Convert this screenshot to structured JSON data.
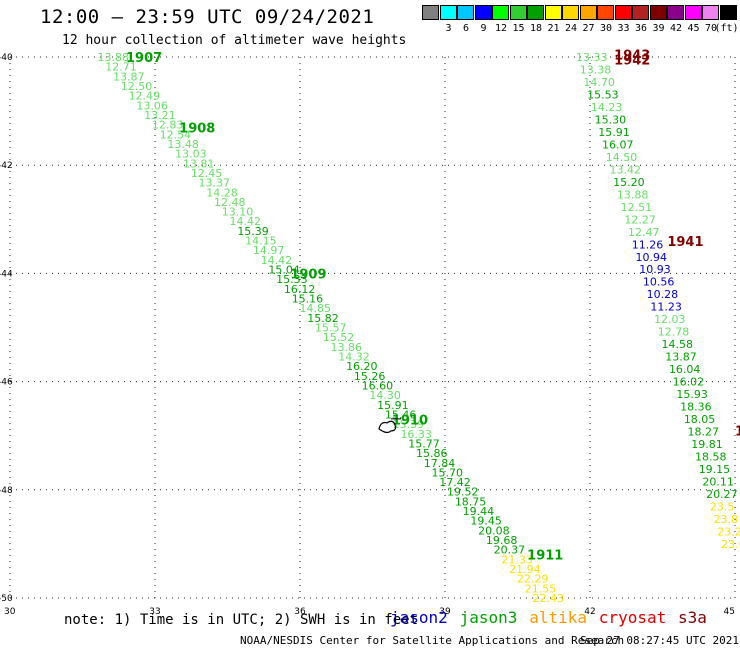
{
  "header": {
    "title": "12:00 – 23:59 UTC 09/24/2021",
    "subtitle": "12 hour collection of altimeter wave heights"
  },
  "legend": {
    "unit": "(ft)",
    "scale": [
      {
        "label": "",
        "color": "#808080"
      },
      {
        "label": "3",
        "color": "#00ffff"
      },
      {
        "label": "6",
        "color": "#00c8ff"
      },
      {
        "label": "9",
        "color": "#0000ff"
      },
      {
        "label": "12",
        "color": "#00ff00"
      },
      {
        "label": "15",
        "color": "#32cd32"
      },
      {
        "label": "18",
        "color": "#00a000"
      },
      {
        "label": "21",
        "color": "#ffff00"
      },
      {
        "label": "24",
        "color": "#ffd700"
      },
      {
        "label": "27",
        "color": "#ffa500"
      },
      {
        "label": "30",
        "color": "#ff4500"
      },
      {
        "label": "33",
        "color": "#ff0000"
      },
      {
        "label": "36",
        "color": "#b22222"
      },
      {
        "label": "39",
        "color": "#800000"
      },
      {
        "label": "42",
        "color": "#8b008b"
      },
      {
        "label": "45",
        "color": "#ff00ff"
      },
      {
        "label": "70",
        "color": "#ee82ee"
      },
      {
        "label": "",
        "color": "#000000"
      }
    ]
  },
  "footer": {
    "note": "note: 1) Time is in UTC; 2) SWH is in feet",
    "satellites": [
      {
        "name": "jason2",
        "color": "#0000cc"
      },
      {
        "name": "jason3",
        "color": "#00a000"
      },
      {
        "name": "altika",
        "color": "#ff9900"
      },
      {
        "name": "cryosat",
        "color": "#dd0000"
      },
      {
        "name": "s3a",
        "color": "#800000"
      }
    ],
    "credit": "NOAA/NESDIS Center for Satellite Applications and Research",
    "timestamp": "Sep 27 08:27:45 UTC 2021"
  },
  "chart_data": {
    "type": "scatter",
    "xlim": [
      30,
      45
    ],
    "ylim": [
      -50,
      -40
    ],
    "x_ticks": [
      "30",
      "33",
      "36",
      "39",
      "42",
      "45"
    ],
    "y_ticks": [
      "-40",
      "-42",
      "-44",
      "-46",
      "-48",
      "-50"
    ],
    "grid": true,
    "colors": {
      "pale_green": "#66dd66",
      "green": "#00a000",
      "blue": "#0000cc",
      "yellow": "#ffdd00",
      "dark_red": "#800000",
      "black": "#000000"
    },
    "tracks": [
      {
        "id": "track-west",
        "start": [
          32.1,
          -40.0
        ],
        "end": [
          41.1,
          -50.0
        ],
        "values": [
          "13.88",
          "12.71",
          "13.87",
          "12.50",
          "12.49",
          "13.06",
          "13.21",
          "12.83",
          "12.54",
          "13.48",
          "13.03",
          "13.81",
          "12.45",
          "13.37",
          "14.28",
          "12.48",
          "13.10",
          "14.42",
          "15.39",
          "14.15",
          "14.97",
          "14.42",
          "15.04",
          "15.33",
          "16.12",
          "15.16",
          "14.85",
          "15.82",
          "15.57",
          "15.52",
          "13.86",
          "14.32",
          "16.20",
          "15.26",
          "16.60",
          "14.30",
          "15.91",
          "15.46",
          "15.39",
          "16.33",
          "15.77",
          "15.86",
          "17.84",
          "15.70",
          "17.42",
          "19.52",
          "18.75",
          "19.44",
          "19.45",
          "20.08",
          "19.68",
          "20.37",
          "21.33",
          "21.94",
          "22.29",
          "21.55",
          "22.43"
        ],
        "colors": [
          "pale_green",
          "pale_green",
          "pale_green",
          "pale_green",
          "pale_green",
          "pale_green",
          "pale_green",
          "pale_green",
          "pale_green",
          "pale_green",
          "pale_green",
          "pale_green",
          "pale_green",
          "pale_green",
          "pale_green",
          "pale_green",
          "pale_green",
          "pale_green",
          "green",
          "pale_green",
          "pale_green",
          "pale_green",
          "green",
          "green",
          "green",
          "green",
          "pale_green",
          "green",
          "pale_green",
          "pale_green",
          "pale_green",
          "pale_green",
          "green",
          "green",
          "green",
          "pale_green",
          "green",
          "green",
          "pale_green",
          "pale_green",
          "green",
          "green",
          "green",
          "green",
          "green",
          "green",
          "green",
          "green",
          "green",
          "green",
          "green",
          "green",
          "yellow",
          "yellow",
          "yellow",
          "yellow",
          "yellow"
        ]
      },
      {
        "id": "track-east",
        "start": [
          42.0,
          -40.0
        ],
        "end": [
          45.0,
          -49.0
        ],
        "values": [
          "13.33",
          "13.38",
          "14.70",
          "15.53",
          "14.23",
          "15.30",
          "15.91",
          "16.07",
          "14.50",
          "13.42",
          "15.20",
          "13.88",
          "12.51",
          "12.27",
          "12.47",
          "11.26",
          "10.94",
          "10.93",
          "10.56",
          "10.28",
          "11.23",
          "12.03",
          "12.78",
          "14.58",
          "13.87",
          "16.04",
          "16.02",
          "15.93",
          "18.36",
          "18.05",
          "18.27",
          "19.81",
          "18.58",
          "19.15",
          "20.11",
          "20.27",
          "23.5",
          "23.8",
          "23.2",
          "23.6"
        ],
        "colors": [
          "pale_green",
          "pale_green",
          "pale_green",
          "green",
          "pale_green",
          "green",
          "green",
          "green",
          "pale_green",
          "pale_green",
          "green",
          "pale_green",
          "pale_green",
          "pale_green",
          "pale_green",
          "blue",
          "blue",
          "blue",
          "blue",
          "blue",
          "blue",
          "pale_green",
          "pale_green",
          "green",
          "green",
          "green",
          "green",
          "green",
          "green",
          "green",
          "green",
          "green",
          "green",
          "green",
          "green",
          "green",
          "yellow",
          "yellow",
          "yellow",
          "yellow"
        ]
      }
    ],
    "time_labels": [
      {
        "label": "1907",
        "x": 32.4,
        "y": -40.0,
        "color": "green"
      },
      {
        "label": "1908",
        "x": 33.5,
        "y": -41.3,
        "color": "green"
      },
      {
        "label": "1909",
        "x": 35.8,
        "y": -44.0,
        "color": "green"
      },
      {
        "label": "1910",
        "x": 37.9,
        "y": -46.7,
        "color": "green"
      },
      {
        "label": "1911",
        "x": 40.7,
        "y": -49.2,
        "color": "green"
      },
      {
        "label": "1943",
        "x": 42.5,
        "y": -39.95,
        "color": "dark_red"
      },
      {
        "label": "1942",
        "x": 42.5,
        "y": -40.05,
        "color": "dark_red"
      },
      {
        "label": "1941",
        "x": 43.6,
        "y": -43.4,
        "color": "dark_red"
      },
      {
        "label": "1",
        "x": 45.0,
        "y": -46.9,
        "color": "dark_red"
      }
    ],
    "coastline": {
      "x": 37.8,
      "y": -46.8,
      "color": "black"
    }
  }
}
